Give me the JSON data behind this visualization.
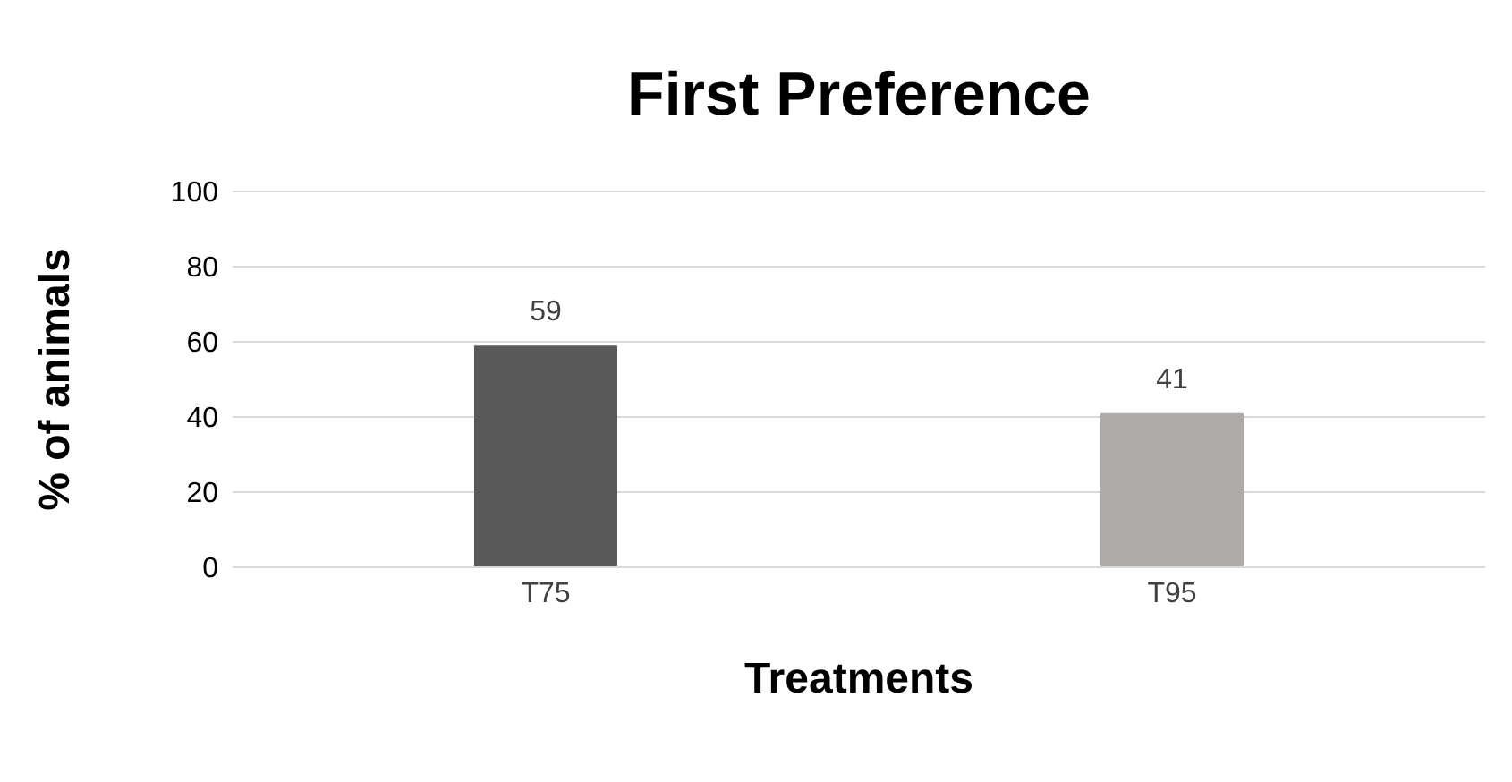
{
  "chart_data": {
    "type": "bar",
    "title": "First Preference",
    "xlabel": "Treatments",
    "ylabel": "% of animals",
    "categories": [
      "T75",
      "T95"
    ],
    "values": [
      59,
      41
    ],
    "colors": [
      "#595959",
      "#afabab"
    ],
    "ylim": [
      0,
      100
    ],
    "yticks": [
      0,
      20,
      40,
      60,
      80,
      100
    ],
    "grid": "y",
    "data_labels": true
  }
}
